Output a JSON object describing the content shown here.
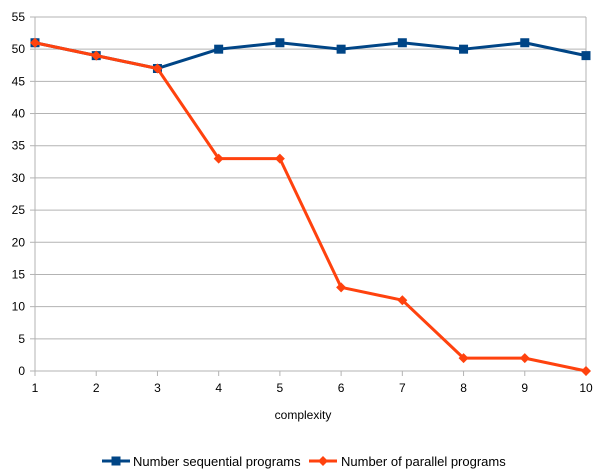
{
  "chart_data": {
    "type": "line",
    "title": "",
    "xlabel": "complexity",
    "ylabel": "",
    "x": [
      1,
      2,
      3,
      4,
      5,
      6,
      7,
      8,
      9,
      10
    ],
    "xlim": [
      1,
      10
    ],
    "ylim": [
      0,
      55
    ],
    "yticks": [
      0,
      5,
      10,
      15,
      20,
      25,
      30,
      35,
      40,
      45,
      50,
      55
    ],
    "grid": "horizontal",
    "legend_position": "bottom",
    "series": [
      {
        "name": "Number sequential programs",
        "color": "#004586",
        "marker": "square",
        "values": [
          51,
          49,
          47,
          50,
          51,
          50,
          51,
          50,
          51,
          49
        ]
      },
      {
        "name": "Number of parallel programs",
        "color": "#ff420e",
        "marker": "diamond",
        "values": [
          51,
          49,
          47,
          33,
          33,
          13,
          11,
          2,
          2,
          0
        ]
      }
    ]
  }
}
